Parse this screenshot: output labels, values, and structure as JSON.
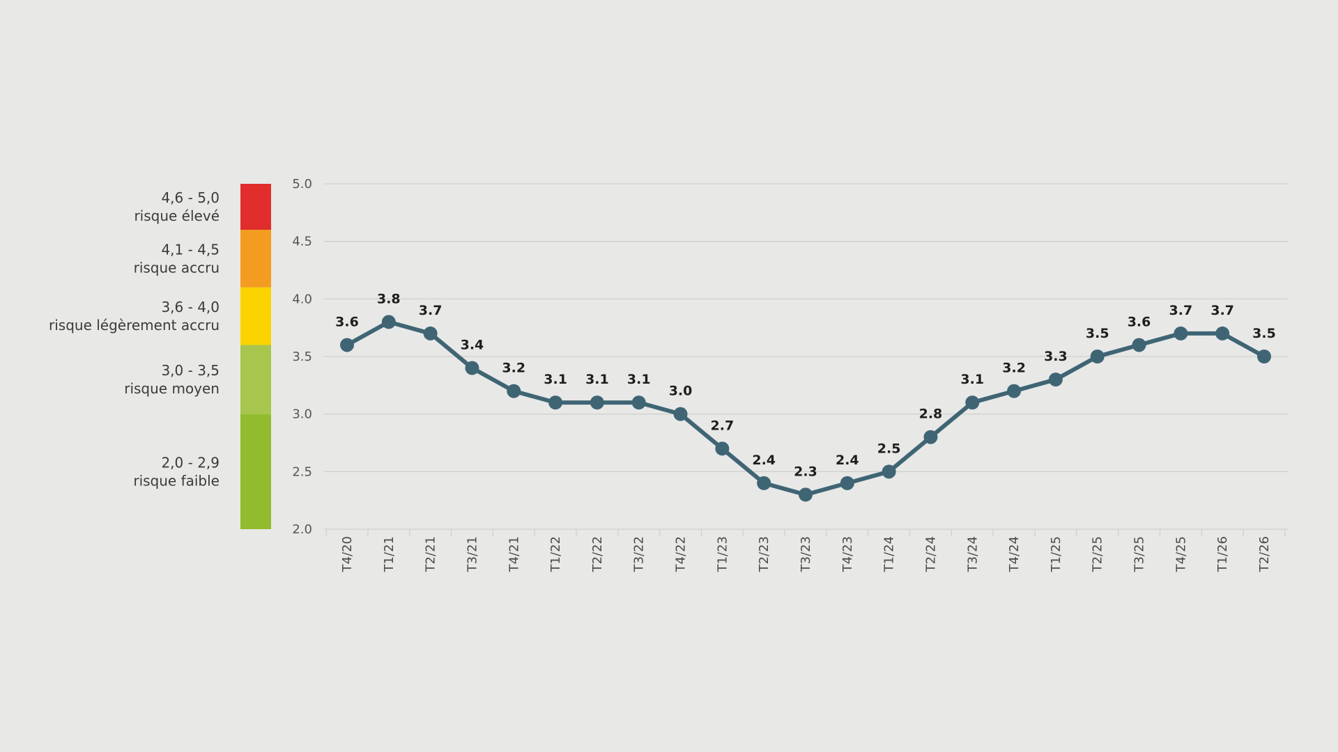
{
  "colors": {
    "background": "#e8e8e7",
    "line": "#3f6574",
    "grid": "#d0d0cf",
    "axis_text": "#555555"
  },
  "legend": {
    "bands": [
      {
        "range": "4,6 - 5,0",
        "name": "risque élevé",
        "color": "#e12d2b",
        "min": 4.6,
        "max": 5.0
      },
      {
        "range": "4,1 - 4,5",
        "name": "risque accru",
        "color": "#f39c1f",
        "min": 4.1,
        "max": 4.5
      },
      {
        "range": "3,6 - 4,0",
        "name": "risque légèrement accru",
        "color": "#fbd400",
        "min": 3.6,
        "max": 4.0
      },
      {
        "range": "3,0 - 3,5",
        "name": "risque moyen",
        "color": "#a8c64e",
        "min": 3.0,
        "max": 3.5
      },
      {
        "range": "2,0 - 2,9",
        "name": "risque faible",
        "color": "#92bc2d",
        "min": 2.0,
        "max": 2.9
      }
    ]
  },
  "chart_data": {
    "type": "line",
    "title": "",
    "xlabel": "",
    "ylabel": "",
    "ylim": [
      2.0,
      5.0
    ],
    "yticks": [
      "2.0",
      "2.5",
      "3.0",
      "3.5",
      "4.0",
      "4.5",
      "5.0"
    ],
    "grid": true,
    "categories": [
      "T4/20",
      "T1/21",
      "T2/21",
      "T3/21",
      "T4/21",
      "T1/22",
      "T2/22",
      "T3/22",
      "T4/22",
      "T1/23",
      "T2/23",
      "T3/23",
      "T4/23",
      "T1/24",
      "T2/24",
      "T3/24",
      "T4/24",
      "T1/25",
      "T2/25",
      "T3/25",
      "T4/25",
      "T1/26",
      "T2/26"
    ],
    "values": [
      3.6,
      3.8,
      3.7,
      3.4,
      3.2,
      3.1,
      3.1,
      3.1,
      3.0,
      2.7,
      2.4,
      2.3,
      2.4,
      2.5,
      2.8,
      3.1,
      3.2,
      3.3,
      3.5,
      3.6,
      3.7,
      3.7,
      3.5
    ]
  }
}
